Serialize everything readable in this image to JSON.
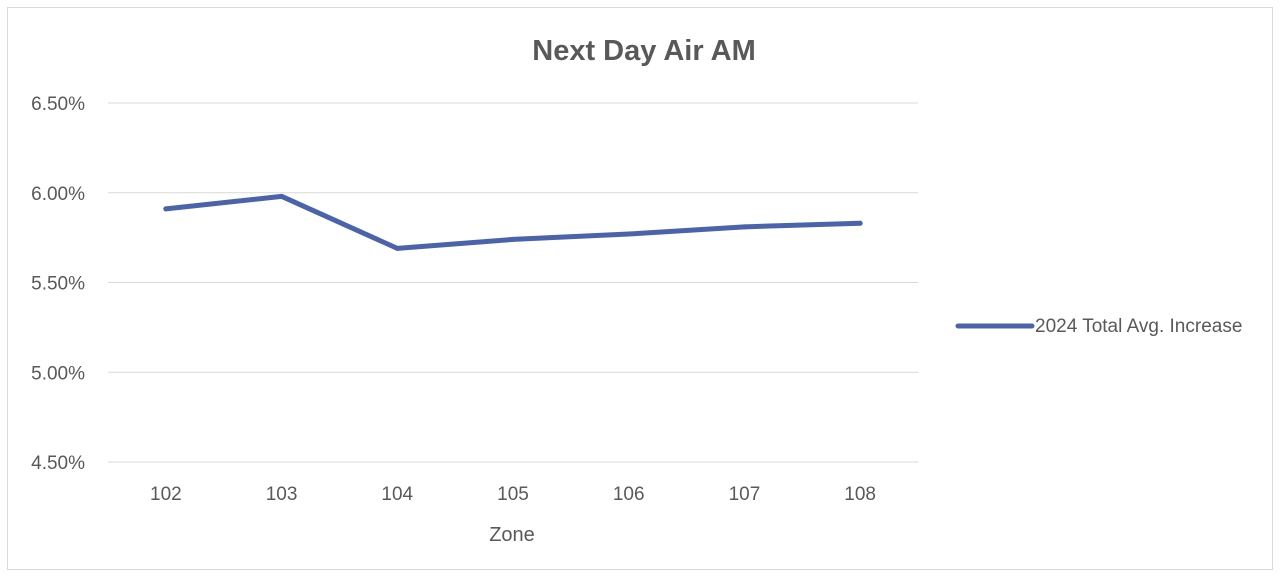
{
  "chart_data": {
    "type": "line",
    "title": "Next Day Air AM",
    "xlabel": "Zone",
    "ylabel": "",
    "categories": [
      "102",
      "103",
      "104",
      "105",
      "106",
      "107",
      "108"
    ],
    "series": [
      {
        "name": "2024 Total Avg. Increase",
        "values": [
          0.0591,
          0.0598,
          0.0569,
          0.0574,
          0.0577,
          0.0581,
          0.0583
        ],
        "color": "#4a63ab"
      }
    ],
    "ylim": [
      0.045,
      0.065
    ],
    "yticks": [
      "4.50%",
      "5.00%",
      "5.50%",
      "6.00%",
      "6.50%"
    ],
    "ytick_values": [
      0.045,
      0.05,
      0.055,
      0.06,
      0.065
    ],
    "grid": true,
    "legend_position": "right",
    "gridline_color": "#d9d9d9",
    "text_color": "#595959"
  }
}
